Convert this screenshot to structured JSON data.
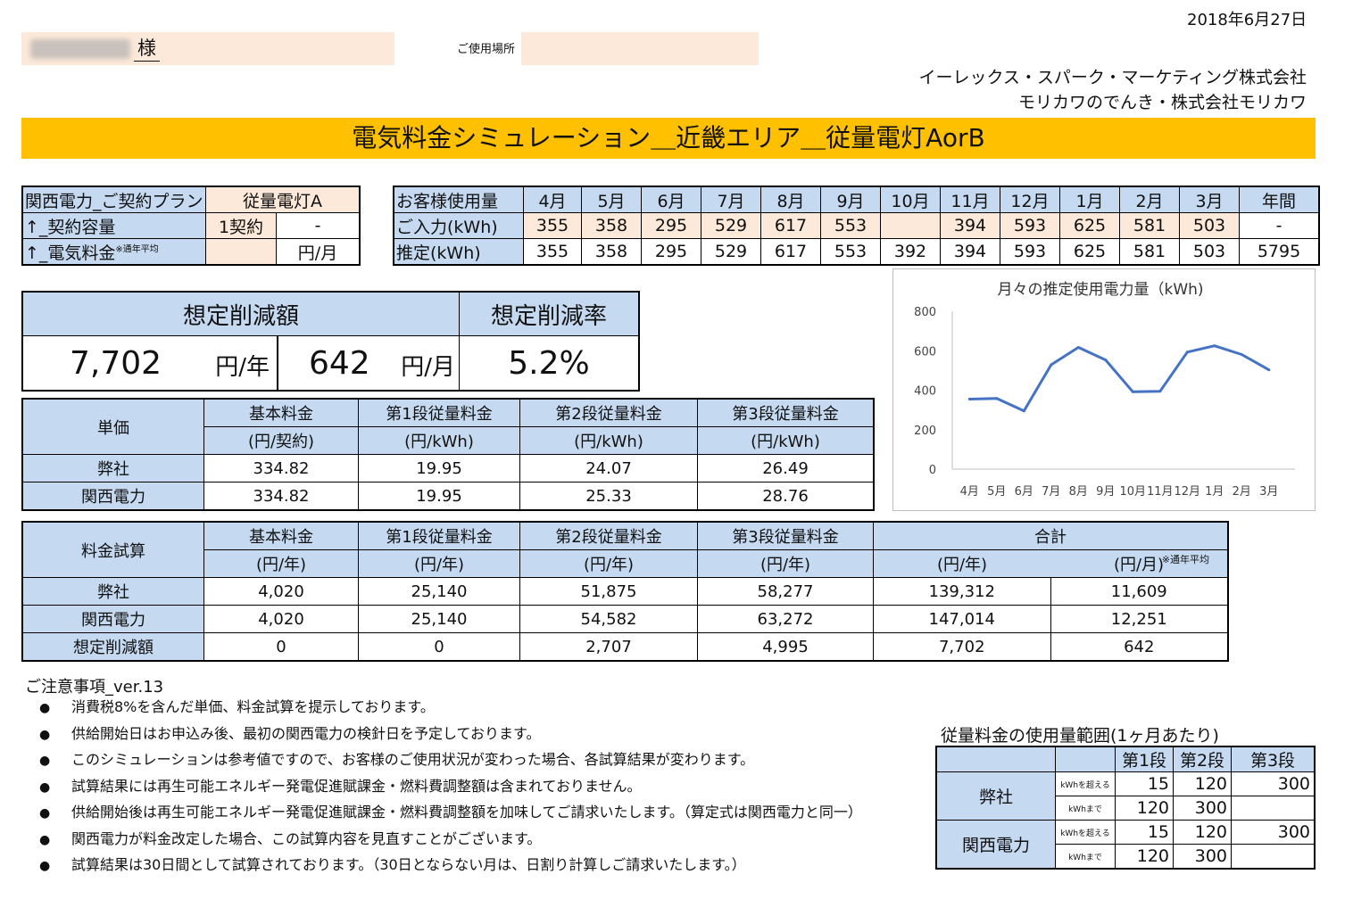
{
  "header": {
    "date": "2018年6月27日",
    "honorific": "様",
    "place_label": "ご使用場所",
    "company_line1": "イーレックス・スパーク・マーケティング株式会社",
    "company_line2": "モリカワのでんき・株式会社モリカワ"
  },
  "title": "電気料金シミュレーション＿近畿エリア＿従量電灯AorB",
  "contract": {
    "plan_label": "関西電力_ご契約プラン",
    "plan_value": "従量電灯A",
    "capacity_label": "↑_契約容量",
    "capacity_value": "1契約",
    "capacity_dash": "-",
    "fee_label": "↑_電気料金",
    "fee_note": "※通年平均",
    "fee_unit": "円/月"
  },
  "usage": {
    "row_header": "お客様使用量",
    "months": [
      "4月",
      "5月",
      "6月",
      "7月",
      "8月",
      "9月",
      "10月",
      "11月",
      "12月",
      "1月",
      "2月",
      "3月"
    ],
    "annual_label": "年間",
    "input_label": "ご入力(kWh)",
    "input_values": [
      "355",
      "358",
      "295",
      "529",
      "617",
      "553",
      "",
      "394",
      "593",
      "625",
      "581",
      "503"
    ],
    "input_annual": "-",
    "est_label": "推定(kWh)",
    "est_values": [
      "355",
      "358",
      "295",
      "529",
      "617",
      "553",
      "392",
      "394",
      "593",
      "625",
      "581",
      "503"
    ],
    "est_annual": "5795"
  },
  "reduction": {
    "amount_label": "想定削減額",
    "rate_label": "想定削減率",
    "yearly_value": "7,702",
    "yearly_unit": "円/年",
    "monthly_value": "642",
    "monthly_unit": "円/月",
    "rate_value": "5.2%"
  },
  "tanka": {
    "header": "単価",
    "cols": [
      {
        "name": "基本料金",
        "unit": "(円/契約)"
      },
      {
        "name": "第1段従量料金",
        "unit": "(円/kWh)"
      },
      {
        "name": "第2段従量料金",
        "unit": "(円/kWh)"
      },
      {
        "name": "第3段従量料金",
        "unit": "(円/kWh)"
      }
    ],
    "rows": [
      {
        "label": "弊社",
        "values": [
          "334.82",
          "19.95",
          "24.07",
          "26.49"
        ]
      },
      {
        "label": "関西電力",
        "values": [
          "334.82",
          "19.95",
          "25.33",
          "28.76"
        ]
      }
    ]
  },
  "shisan": {
    "header": "料金試算",
    "cols": [
      {
        "name": "基本料金",
        "unit": "(円/年)"
      },
      {
        "name": "第1段従量料金",
        "unit": "(円/年)"
      },
      {
        "name": "第2段従量料金",
        "unit": "(円/年)"
      },
      {
        "name": "第3段従量料金",
        "unit": "(円/年)"
      }
    ],
    "total_label": "合計",
    "total_unit_year": "(円/年)",
    "total_unit_month": "(円/月)",
    "total_note": "※通年平均",
    "rows": [
      {
        "label": "弊社",
        "values": [
          "4,020",
          "25,140",
          "51,875",
          "58,277",
          "139,312",
          "11,609"
        ]
      },
      {
        "label": "関西電力",
        "values": [
          "4,020",
          "25,140",
          "54,582",
          "63,272",
          "147,014",
          "12,251"
        ]
      },
      {
        "label": "想定削減額",
        "values": [
          "0",
          "0",
          "2,707",
          "4,995",
          "7,702",
          "642"
        ]
      }
    ]
  },
  "chart_data": {
    "type": "line",
    "title": "月々の推定使用電力量（kWh)",
    "categories": [
      "4月",
      "5月",
      "6月",
      "7月",
      "8月",
      "9月",
      "10月",
      "11月",
      "12月",
      "1月",
      "2月",
      "3月"
    ],
    "values": [
      355,
      358,
      295,
      529,
      617,
      553,
      392,
      394,
      593,
      625,
      581,
      503
    ],
    "yticks": [
      "0",
      "200",
      "400",
      "600",
      "800"
    ],
    "ylim": [
      0,
      800
    ],
    "grid": false,
    "legend": "none",
    "line_color": "#4472c4"
  },
  "notes": {
    "title": "ご注意事項_ver.13",
    "bullet": "●",
    "items": [
      "消費税8%を含んだ単価、料金試算を提示しております。",
      "供給開始日はお申込み後、最初の関西電力の検針日を予定しております。",
      "このシミュレーションは参考値ですので、お客様のご使用状況が変わった場合、各試算結果が変わります。",
      "試算結果には再生可能エネルギー発電促進賦課金・燃料費調整額は含まれておりません。",
      "供給開始後は再生可能エネルギー発電促進賦課金・燃料費調整額を加味してご請求いたします。（算定式は関西電力と同一）",
      "関西電力が料金改定した場合、この試算内容を見直すことがございます。",
      "試算結果は30日間として試算されております。（30日とならない月は、日割り計算しご請求いたします。）"
    ]
  },
  "range": {
    "title": "従量料金の使用量範囲(1ヶ月あたり)",
    "headers": [
      "第1段",
      "第2段",
      "第3段"
    ],
    "over_label": "kWhを超える",
    "upto_label": "kWhまで",
    "companies": [
      {
        "name": "弊社",
        "over": [
          "15",
          "120",
          "300"
        ],
        "upto": [
          "120",
          "300",
          ""
        ]
      },
      {
        "name": "関西電力",
        "over": [
          "15",
          "120",
          "300"
        ],
        "upto": [
          "120",
          "300",
          ""
        ]
      }
    ]
  }
}
